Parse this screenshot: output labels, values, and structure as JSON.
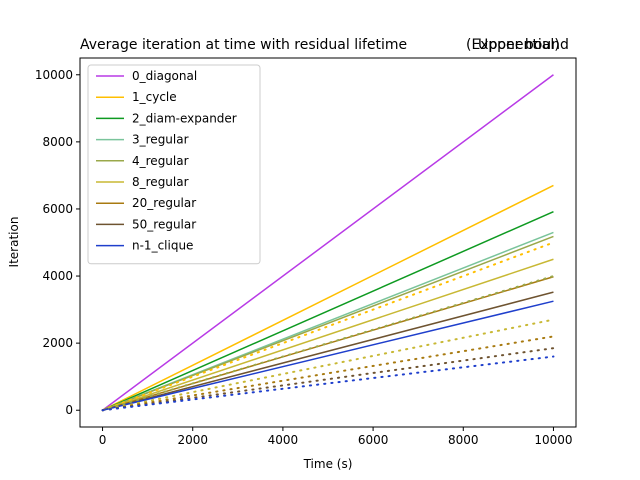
{
  "chart_data": {
    "type": "line",
    "title": "Average iteration at time with residual lifetime (Exponential)",
    "title_left": "Average iteration at time with residual lifetime",
    "title_right": "(Exponential)",
    "title_overlap": "Upper bound",
    "xlabel": "Time (s)",
    "ylabel": "Iteration",
    "xlim": [
      -500,
      10500
    ],
    "ylim": [
      -500,
      10500
    ],
    "xticks": [
      0,
      2000,
      4000,
      6000,
      8000,
      10000
    ],
    "yticks": [
      0,
      2000,
      4000,
      6000,
      8000,
      10000
    ],
    "grid": false,
    "legend_position": "top-left",
    "x": [
      0,
      10000
    ],
    "series": [
      {
        "name": "0_diagonal",
        "color": "#b83ae6",
        "style": "solid",
        "values": [
          0,
          10000
        ]
      },
      {
        "name": "1_cycle",
        "color": "#ffbf00",
        "style": "solid",
        "values": [
          0,
          6700
        ]
      },
      {
        "name": "2_diam-expander",
        "color": "#0e9a21",
        "style": "solid",
        "values": [
          0,
          5920
        ]
      },
      {
        "name": "3_regular",
        "color": "#7ac49b",
        "style": "solid",
        "values": [
          0,
          5300
        ]
      },
      {
        "name": "4_regular",
        "color": "#9aa84a",
        "style": "solid",
        "values": [
          0,
          5180
        ]
      },
      {
        "name": "8_regular",
        "color": "#c8b834",
        "style": "solid",
        "values": [
          0,
          4500
        ]
      },
      {
        "name": "20_regular",
        "color": "#a87a10",
        "style": "solid",
        "values": [
          0,
          3980
        ]
      },
      {
        "name": "50_regular",
        "color": "#6e5330",
        "style": "solid",
        "values": [
          0,
          3520
        ]
      },
      {
        "name": "n-1_clique",
        "color": "#1f3fcc",
        "style": "solid",
        "values": [
          0,
          3250
        ]
      },
      {
        "color": "#ffbf00",
        "style": "dotted",
        "values": [
          0,
          5000
        ]
      },
      {
        "color": "#9aa84a",
        "style": "dotted",
        "values": [
          0,
          4000
        ]
      },
      {
        "color": "#c8b834",
        "style": "dotted",
        "values": [
          0,
          2700
        ]
      },
      {
        "color": "#a87a10",
        "style": "dotted",
        "values": [
          0,
          2200
        ]
      },
      {
        "color": "#6e5330",
        "style": "dotted",
        "values": [
          0,
          1850
        ]
      },
      {
        "color": "#1f3fcc",
        "style": "dotted",
        "values": [
          0,
          1600
        ]
      }
    ]
  }
}
